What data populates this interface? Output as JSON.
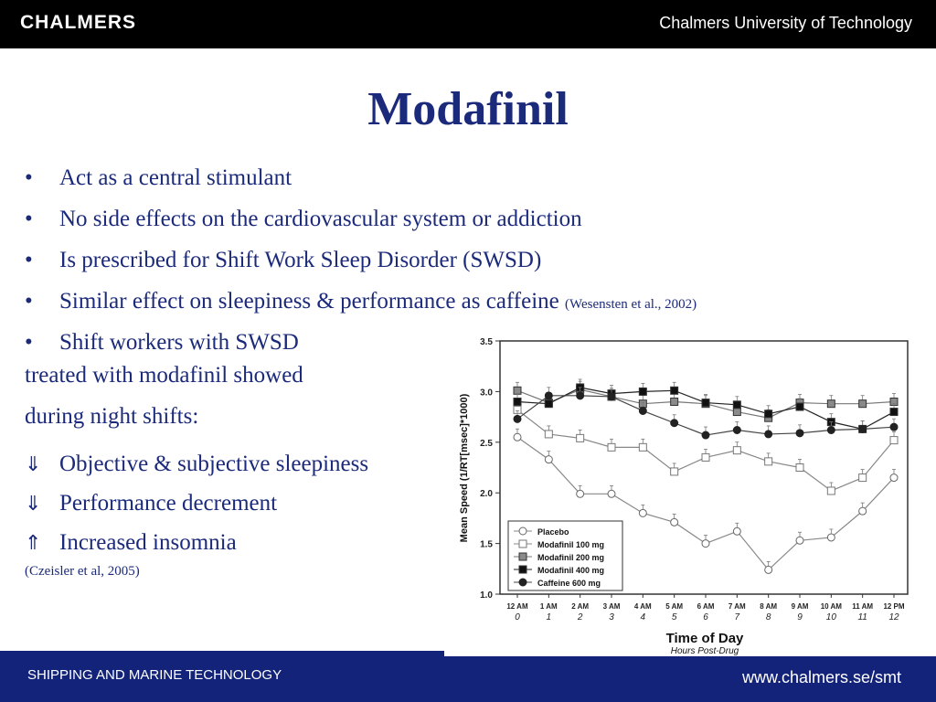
{
  "header": {
    "logo": "CHALMERS",
    "university": "Chalmers University of Technology"
  },
  "title": "Modafinil",
  "bullets": [
    {
      "mark": "•",
      "text": "Act as a central stimulant",
      "cite": ""
    },
    {
      "mark": "•",
      "text": "No side effects on the cardiovascular system or addiction",
      "cite": ""
    },
    {
      "mark": "•",
      "text": "Is prescribed for Shift Work Sleep Disorder (SWSD)",
      "cite": ""
    },
    {
      "mark": "•",
      "text": "Similar effect on sleepiness & performance as caffeine ",
      "cite": "(Wesensten et al., 2002)"
    },
    {
      "mark": "•",
      "text": "Shift workers with SWSD",
      "cite": ""
    }
  ],
  "continuation": [
    "treated with modafinil showed",
    "during night shifts:"
  ],
  "effects": [
    {
      "mark": "⇓",
      "text": "Objective & subjective sleepiness"
    },
    {
      "mark": "⇓",
      "text": "Performance decrement"
    },
    {
      "mark": "⇑",
      "text": "Increased insomnia"
    }
  ],
  "reference": "(Czeisler et al, 2005)",
  "footer": {
    "department": "SHIPPING AND MARINE TECHNOLOGY",
    "url": "www.chalmers.se/smt"
  },
  "chart_data": {
    "type": "line",
    "title": "",
    "xlabel": "Time of Day",
    "xlabel_sub": "Hours Post-Drug",
    "ylabel": "Mean Speed (1/RT[msec]*1000)",
    "ylim": [
      1.0,
      3.5
    ],
    "yticks": [
      "1.0",
      "1.5",
      "2.0",
      "2.5",
      "3.0",
      "3.5"
    ],
    "categories": [
      "12 AM",
      "1 AM",
      "2 AM",
      "3 AM",
      "4 AM",
      "5 AM",
      "6 AM",
      "7 AM",
      "8 AM",
      "9 AM",
      "10 AM",
      "11 AM",
      "12 PM"
    ],
    "hours": [
      "0",
      "1",
      "2",
      "3",
      "4",
      "5",
      "6",
      "7",
      "8",
      "9",
      "10",
      "11",
      "12"
    ],
    "grid": false,
    "legend_position": "bottom-left",
    "series": [
      {
        "name": "Placebo",
        "marker": "circle-open",
        "color": "#888888",
        "values": [
          2.55,
          2.33,
          1.99,
          1.99,
          1.8,
          1.71,
          1.5,
          1.62,
          1.24,
          1.53,
          1.56,
          1.82,
          2.15
        ]
      },
      {
        "name": "Modafinil 100 mg",
        "marker": "square-open",
        "color": "#888888",
        "values": [
          2.82,
          2.58,
          2.54,
          2.45,
          2.45,
          2.21,
          2.35,
          2.42,
          2.31,
          2.25,
          2.02,
          2.15,
          2.52
        ]
      },
      {
        "name": "Modafinil 200 mg",
        "marker": "square-gray",
        "color": "#777777",
        "values": [
          3.01,
          2.89,
          3.02,
          2.95,
          2.88,
          2.9,
          2.88,
          2.8,
          2.74,
          2.89,
          2.88,
          2.88,
          2.9
        ]
      },
      {
        "name": "Modafinil 400 mg",
        "marker": "square-black",
        "color": "#222222",
        "values": [
          2.9,
          2.88,
          3.04,
          2.98,
          3.0,
          3.01,
          2.89,
          2.87,
          2.78,
          2.85,
          2.7,
          2.63,
          2.8
        ]
      },
      {
        "name": "Caffeine 600 mg",
        "marker": "circle-black",
        "color": "#444444",
        "values": [
          2.73,
          2.96,
          2.96,
          2.95,
          2.81,
          2.69,
          2.57,
          2.62,
          2.58,
          2.59,
          2.62,
          2.63,
          2.65
        ]
      }
    ]
  }
}
